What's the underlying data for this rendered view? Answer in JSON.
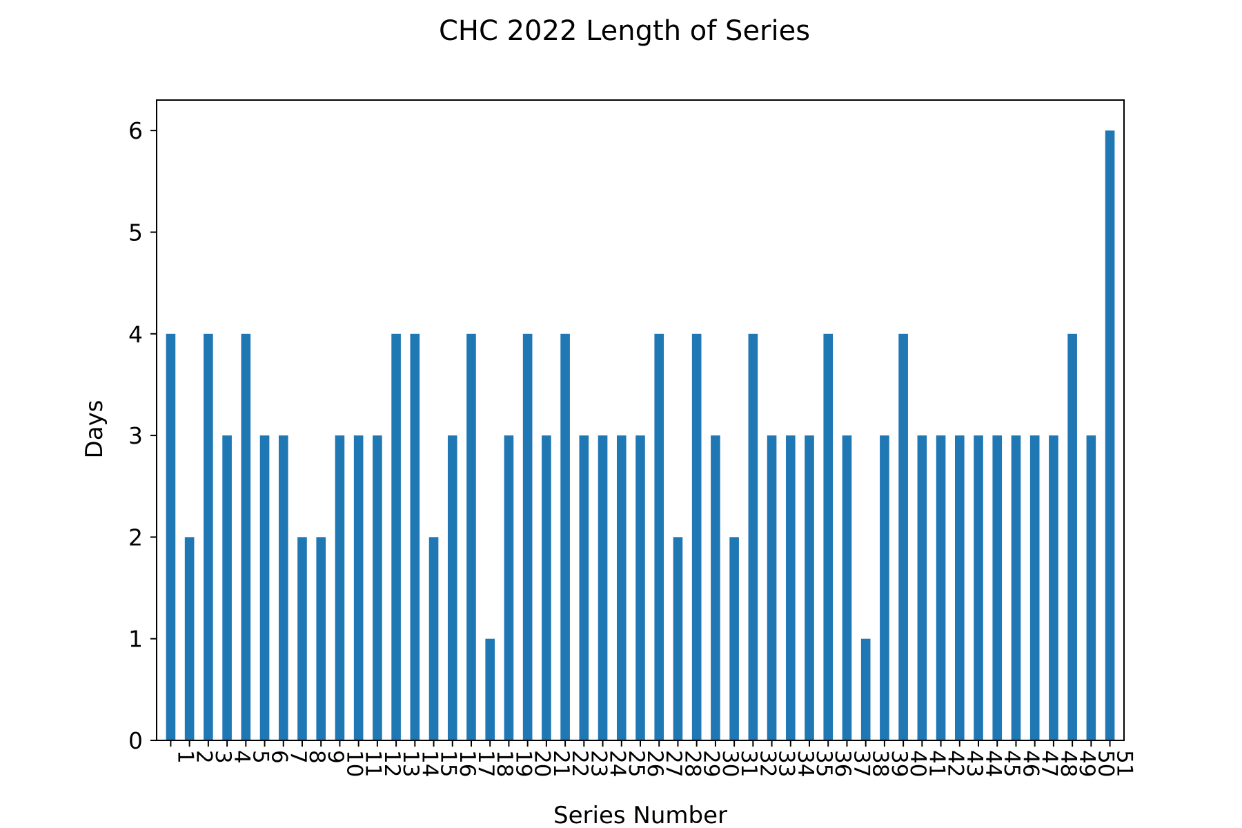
{
  "chart_data": {
    "type": "bar",
    "title": "CHC 2022 Length of Series",
    "xlabel": "Series Number",
    "ylabel": "Days",
    "categories": [
      "1",
      "2",
      "3",
      "4",
      "5",
      "6",
      "7",
      "8",
      "9",
      "10",
      "11",
      "12",
      "13",
      "14",
      "15",
      "16",
      "17",
      "18",
      "19",
      "20",
      "21",
      "22",
      "23",
      "24",
      "25",
      "26",
      "27",
      "28",
      "29",
      "30",
      "31",
      "32",
      "33",
      "34",
      "35",
      "36",
      "37",
      "38",
      "39",
      "40",
      "41",
      "42",
      "43",
      "44",
      "45",
      "46",
      "47",
      "48",
      "49",
      "50",
      "51"
    ],
    "values": [
      4,
      2,
      4,
      3,
      4,
      3,
      3,
      2,
      2,
      3,
      3,
      3,
      4,
      4,
      2,
      3,
      4,
      1,
      3,
      4,
      3,
      4,
      3,
      3,
      3,
      3,
      4,
      2,
      4,
      3,
      2,
      4,
      3,
      3,
      3,
      4,
      3,
      1,
      3,
      4,
      3,
      3,
      3,
      3,
      3,
      3,
      3,
      3,
      4,
      3,
      6
    ],
    "ylim": [
      0,
      6.3
    ],
    "yticks": [
      0,
      1,
      2,
      3,
      4,
      5,
      6
    ],
    "grid": false,
    "legend": "none",
    "colors": {
      "bar": "#1f77b4",
      "axes": "#000000",
      "background": "#ffffff"
    }
  }
}
